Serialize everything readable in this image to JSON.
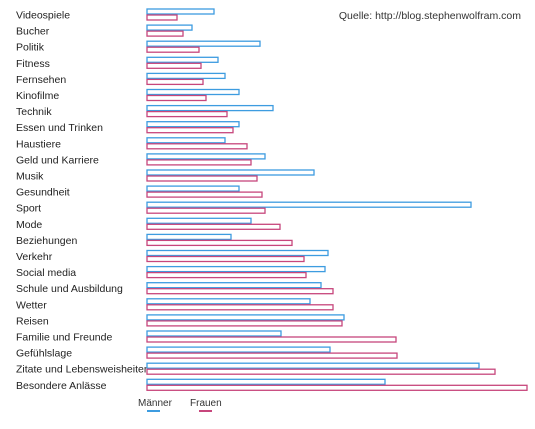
{
  "chart_data": {
    "type": "bar",
    "orientation": "horizontal",
    "source": "Quelle: http://blog.stephenwolfram.com",
    "categories": [
      "Videospiele",
      "Bucher",
      "Politik",
      "Fitness",
      "Fernsehen",
      "Kinofilme",
      "Technik",
      "Essen und Trinken",
      "Haustiere",
      "Geld und Karriere",
      "Musik",
      "Gesundheit",
      "Sport",
      "Mode",
      "Beziehungen",
      "Verkehr",
      "Social media",
      "Schule und Ausbildung",
      "Wetter",
      "Reisen",
      "Familie und Freunde",
      "Gefühlslage",
      "Zitate und Lebensweisheiten",
      "Besondere Anlässe"
    ],
    "series": [
      {
        "name": "Männer",
        "color": "#3d9ce0",
        "values": [
          67,
          45,
          113,
          71,
          78,
          92,
          126,
          92,
          78,
          118,
          167,
          92,
          324,
          104,
          84,
          181,
          178,
          174,
          163,
          197,
          134,
          183,
          332,
          238
        ]
      },
      {
        "name": "Frauen",
        "color": "#c7467c",
        "values": [
          30,
          36,
          52,
          54,
          56,
          59,
          80,
          86,
          100,
          104,
          110,
          115,
          118,
          133,
          145,
          157,
          159,
          186,
          186,
          195,
          249,
          250,
          348,
          380
        ]
      }
    ],
    "xlim": [
      0,
      380
    ],
    "grid": false,
    "legend": "bottom-left"
  }
}
